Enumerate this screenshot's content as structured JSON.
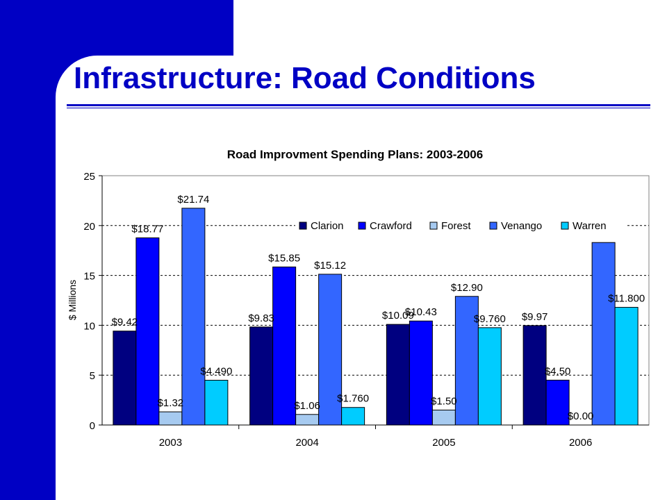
{
  "slide": {
    "title": "Infrastructure:  Road Conditions",
    "accent_color": "#0000c4"
  },
  "chart_data": {
    "type": "bar",
    "title": "Road Improvment Spending Plans: 2003-2006",
    "xlabel": "",
    "ylabel": "$ Millions",
    "ylim": [
      0,
      25
    ],
    "yticks": [
      0,
      5,
      10,
      15,
      20,
      25
    ],
    "grid": true,
    "legend_position": "top-right",
    "categories": [
      "2003",
      "2004",
      "2005",
      "2006"
    ],
    "series": [
      {
        "name": "Clarion",
        "color": "#000080",
        "values": [
          9.42,
          9.83,
          10.09,
          9.97
        ],
        "labels": [
          "$9.42",
          "$9.83",
          "$10.09",
          "$9.97"
        ]
      },
      {
        "name": "Crawford",
        "color": "#0000ff",
        "values": [
          18.77,
          15.85,
          10.43,
          4.5
        ],
        "labels": [
          "$18.77",
          "$15.85",
          "$10.43",
          "$4.50"
        ]
      },
      {
        "name": "Forest",
        "color": "#a6caf0",
        "values": [
          1.32,
          1.06,
          1.5,
          0.0
        ],
        "labels": [
          "$1.32",
          "$1.06",
          "$1.50",
          "$0.00"
        ]
      },
      {
        "name": "Venango",
        "color": "#3366ff",
        "values": [
          21.74,
          15.12,
          12.9,
          18.3
        ],
        "labels": [
          "$21.74",
          "$15.12",
          "$12.90",
          ""
        ]
      },
      {
        "name": "Warren",
        "color": "#00ccff",
        "values": [
          4.49,
          1.76,
          9.76,
          11.8
        ],
        "labels": [
          "$4.490",
          "$1.760",
          "$9.760",
          "$11.800"
        ]
      }
    ]
  }
}
